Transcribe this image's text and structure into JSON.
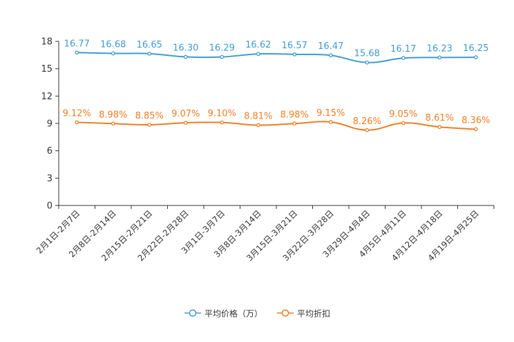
{
  "chart_data": {
    "type": "line",
    "categories": [
      "2月1日-2月7日",
      "2月8日-2月14日",
      "2月15日-2月21日",
      "2月22日-2月28日",
      "3月1日-3月7日",
      "3月8日-3月14日",
      "3月15日-3月21日",
      "3月22日-3月28日",
      "3月29日-4月4日",
      "4月5日-4月11日",
      "4月12日-4月18日",
      "4月19日-4月25日"
    ],
    "yticks": [
      0,
      3,
      6,
      9,
      12,
      15,
      18
    ],
    "ylim": [
      0,
      18
    ],
    "series": [
      {
        "name": "平均价格（万）",
        "color": "#3d9bd0",
        "values": [
          16.77,
          16.68,
          16.65,
          16.3,
          16.29,
          16.62,
          16.57,
          16.47,
          15.68,
          16.17,
          16.23,
          16.25
        ],
        "labels": [
          "16.77",
          "16.68",
          "16.65",
          "16.30",
          "16.29",
          "16.62",
          "16.57",
          "16.47",
          "15.68",
          "16.17",
          "16.23",
          "16.25"
        ]
      },
      {
        "name": "平均折扣",
        "color": "#f07c21",
        "values": [
          9.12,
          8.98,
          8.85,
          9.07,
          9.1,
          8.81,
          8.98,
          9.15,
          8.26,
          9.05,
          8.61,
          8.36
        ],
        "labels": [
          "9.12%",
          "8.98%",
          "8.85%",
          "9.07%",
          "9.10%",
          "8.81%",
          "8.98%",
          "9.15%",
          "8.26%",
          "9.05%",
          "8.61%",
          "8.36%"
        ]
      }
    ],
    "legend_position": "bottom"
  }
}
